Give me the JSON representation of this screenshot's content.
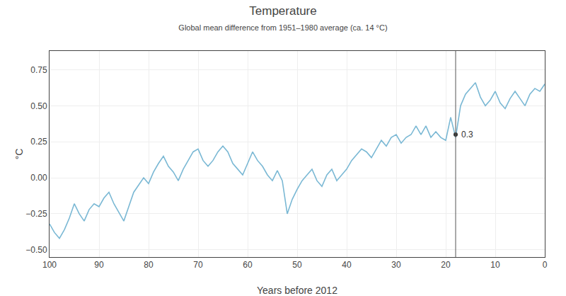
{
  "chart_data": {
    "type": "line",
    "title": "Temperature",
    "subtitle": "Global mean difference from 1951–1980 average (ca. 14 °C)",
    "x_label": "Years before 2012",
    "y_label": "°C",
    "x": [
      100,
      99,
      98,
      97,
      96,
      95,
      94,
      93,
      92,
      91,
      90,
      89,
      88,
      87,
      86,
      85,
      84,
      83,
      82,
      81,
      80,
      79,
      78,
      77,
      76,
      75,
      74,
      73,
      72,
      71,
      70,
      69,
      68,
      67,
      66,
      65,
      64,
      63,
      62,
      61,
      60,
      59,
      58,
      57,
      56,
      55,
      54,
      53,
      52,
      51,
      50,
      49,
      48,
      47,
      46,
      45,
      44,
      43,
      42,
      41,
      40,
      39,
      38,
      37,
      36,
      35,
      34,
      33,
      32,
      31,
      30,
      29,
      28,
      27,
      26,
      25,
      24,
      23,
      22,
      21,
      20,
      19,
      18,
      17,
      16,
      15,
      14,
      13,
      12,
      11,
      10,
      9,
      8,
      7,
      6,
      5,
      4,
      3,
      2,
      1,
      0
    ],
    "values": [
      -0.32,
      -0.38,
      -0.42,
      -0.36,
      -0.28,
      -0.18,
      -0.25,
      -0.3,
      -0.22,
      -0.18,
      -0.2,
      -0.14,
      -0.1,
      -0.18,
      -0.24,
      -0.3,
      -0.2,
      -0.1,
      -0.05,
      0.0,
      -0.04,
      0.04,
      0.1,
      0.15,
      0.08,
      0.04,
      -0.02,
      0.06,
      0.12,
      0.18,
      0.2,
      0.12,
      0.08,
      0.12,
      0.18,
      0.22,
      0.18,
      0.1,
      0.06,
      0.02,
      0.1,
      0.18,
      0.12,
      0.08,
      0.02,
      -0.02,
      0.05,
      -0.02,
      -0.25,
      -0.15,
      -0.08,
      -0.02,
      0.02,
      0.06,
      -0.02,
      -0.06,
      0.02,
      0.06,
      -0.02,
      0.02,
      0.06,
      0.12,
      0.16,
      0.2,
      0.18,
      0.14,
      0.2,
      0.26,
      0.22,
      0.28,
      0.3,
      0.24,
      0.28,
      0.3,
      0.36,
      0.3,
      0.36,
      0.28,
      0.32,
      0.28,
      0.26,
      0.42,
      0.28,
      0.5,
      0.58,
      0.62,
      0.66,
      0.56,
      0.5,
      0.54,
      0.6,
      0.52,
      0.48,
      0.55,
      0.6,
      0.55,
      0.5,
      0.58,
      0.62,
      0.6,
      0.65
    ],
    "color": "#7ab8d4",
    "xlim": [
      100,
      0
    ],
    "xticks": [
      100,
      90,
      80,
      70,
      60,
      50,
      40,
      30,
      20,
      10,
      0
    ],
    "ylim": [
      -0.55,
      0.88
    ],
    "yticks": [
      {
        "value": -0.5,
        "label": "−0.50"
      },
      {
        "value": -0.25,
        "label": "−0.25"
      },
      {
        "value": 0,
        "label": "0.00"
      },
      {
        "value": 0.25,
        "label": "0.25"
      },
      {
        "value": 0.5,
        "label": "0.50"
      },
      {
        "value": 0.75,
        "label": "0.75"
      }
    ],
    "grid": true,
    "annotations": [
      {
        "x": 18,
        "y": 0.3,
        "text": "0.3"
      }
    ]
  }
}
